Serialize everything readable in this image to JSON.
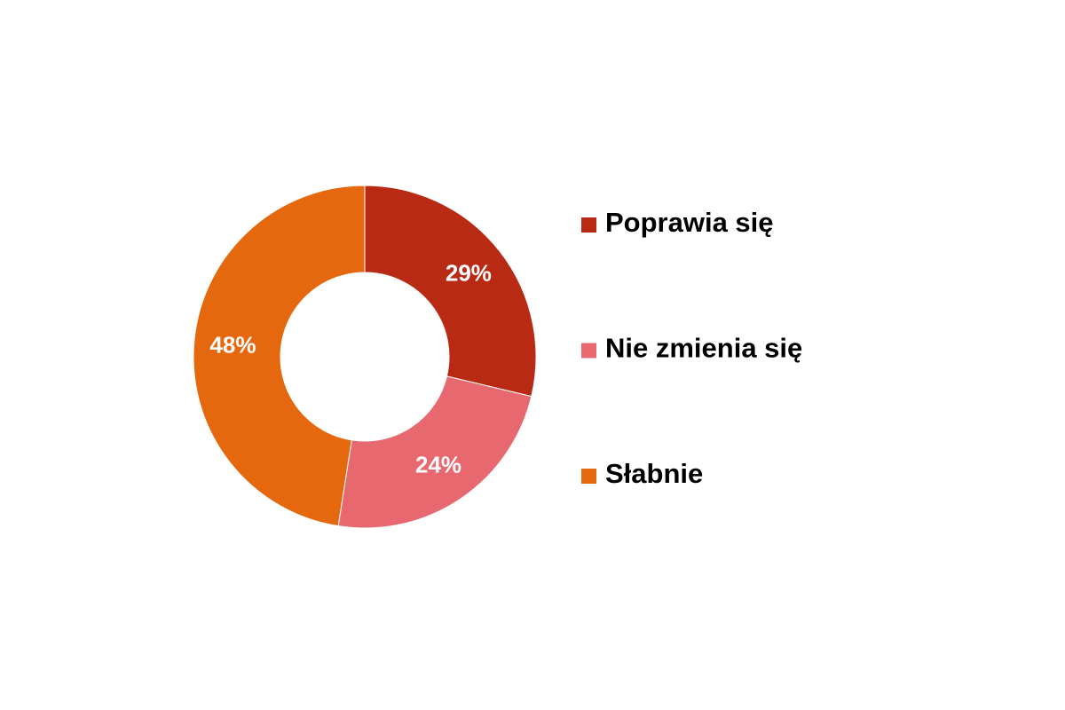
{
  "chart_data": {
    "type": "donut",
    "categories": [
      "Poprawia się",
      "Nie zmienia się",
      "Słabnie"
    ],
    "values": [
      29,
      24,
      48
    ],
    "value_labels": [
      "29%",
      "24%",
      "48%"
    ],
    "colors": [
      "#b82a14",
      "#e86870",
      "#e5680e"
    ],
    "legend": "right"
  }
}
